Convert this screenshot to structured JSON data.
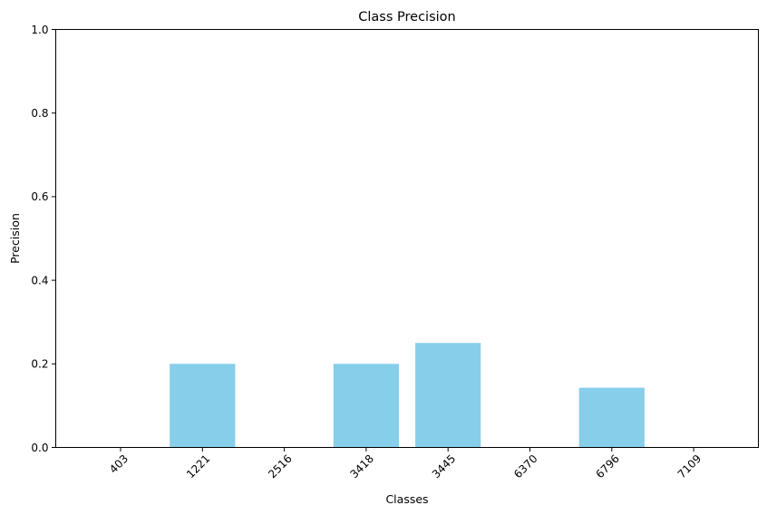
{
  "chart_data": {
    "type": "bar",
    "title": "Class Precision",
    "xlabel": "Classes",
    "ylabel": "Precision",
    "categories": [
      "403",
      "1221",
      "2516",
      "3418",
      "3445",
      "6370",
      "6796",
      "7109"
    ],
    "values": [
      0.0,
      0.2,
      0.0,
      0.2,
      0.25,
      0.0,
      0.1429,
      0.0
    ],
    "ylim": [
      0,
      1.0
    ],
    "yticks": [
      "0.0",
      "0.2",
      "0.4",
      "0.6",
      "0.8",
      "1.0"
    ],
    "grid": false,
    "bar_color": "#87ceeb"
  }
}
